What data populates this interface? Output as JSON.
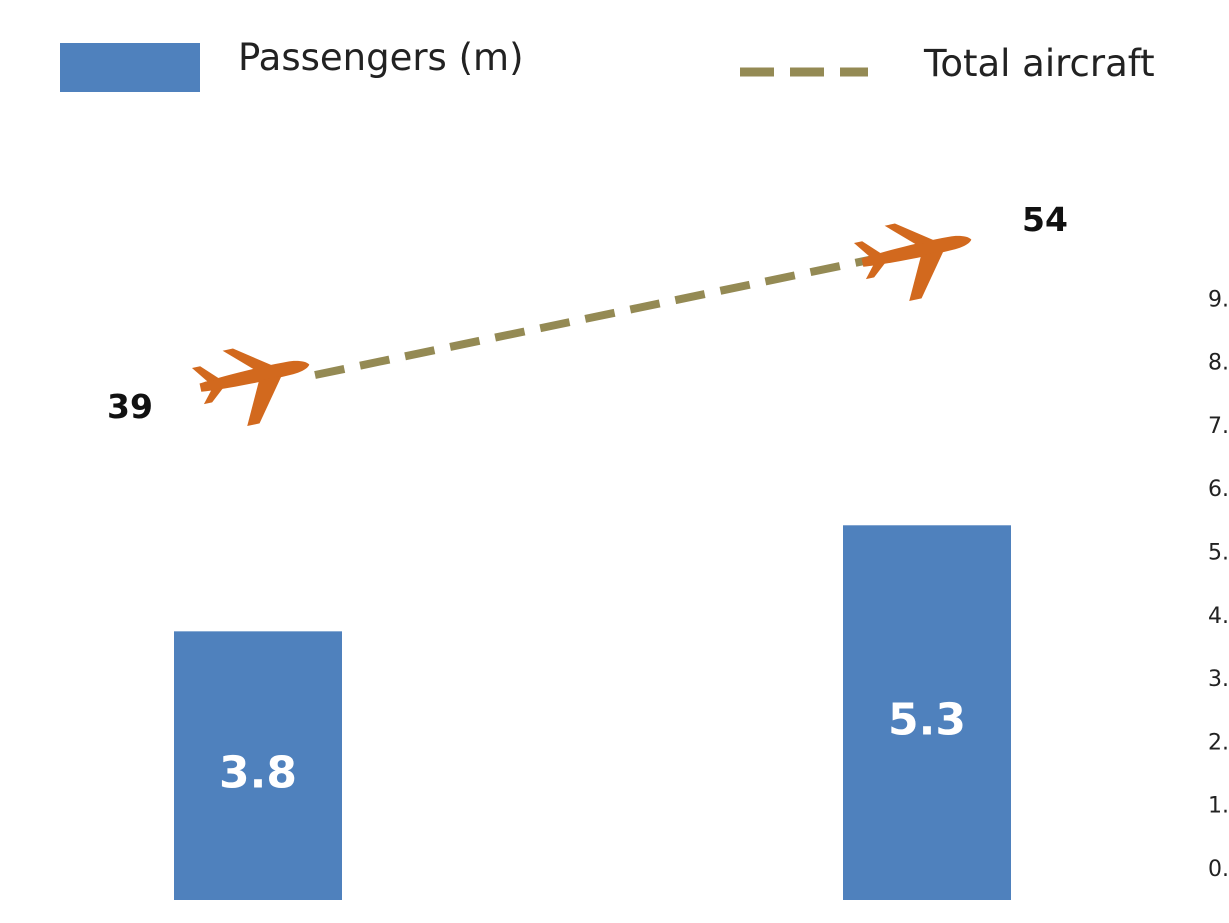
{
  "legend": {
    "bars_label": "Passengers (m)",
    "line_label": "Total aircraft"
  },
  "colors": {
    "bar": "#4f81bd",
    "line": "#948a54",
    "plane": "#d2691e",
    "text": "#111111"
  },
  "icons": {
    "plane": "airplane-icon"
  },
  "chart_data": {
    "type": "bar",
    "categories": [
      "",
      ""
    ],
    "series": [
      {
        "name": "Passengers (m)",
        "type": "bar",
        "values": [
          3.8,
          5.3
        ],
        "axis": "right"
      },
      {
        "name": "Total aircraft",
        "type": "line",
        "style": "dashed",
        "values": [
          39,
          54
        ],
        "axis": "hidden"
      }
    ],
    "data_labels": {
      "bars": [
        "3.8",
        "5.3"
      ],
      "line": [
        "39",
        "54"
      ]
    },
    "right_axis": {
      "ticks": [
        "0.",
        "1.",
        "2.",
        "3.",
        "4.",
        "5.",
        "6.",
        "7.",
        "8.",
        "9."
      ],
      "tick_values": [
        0,
        1,
        2,
        3,
        4,
        5,
        6,
        7,
        8,
        9
      ]
    },
    "ylim": [
      0,
      10
    ],
    "grid": false,
    "legend_position": "top"
  }
}
